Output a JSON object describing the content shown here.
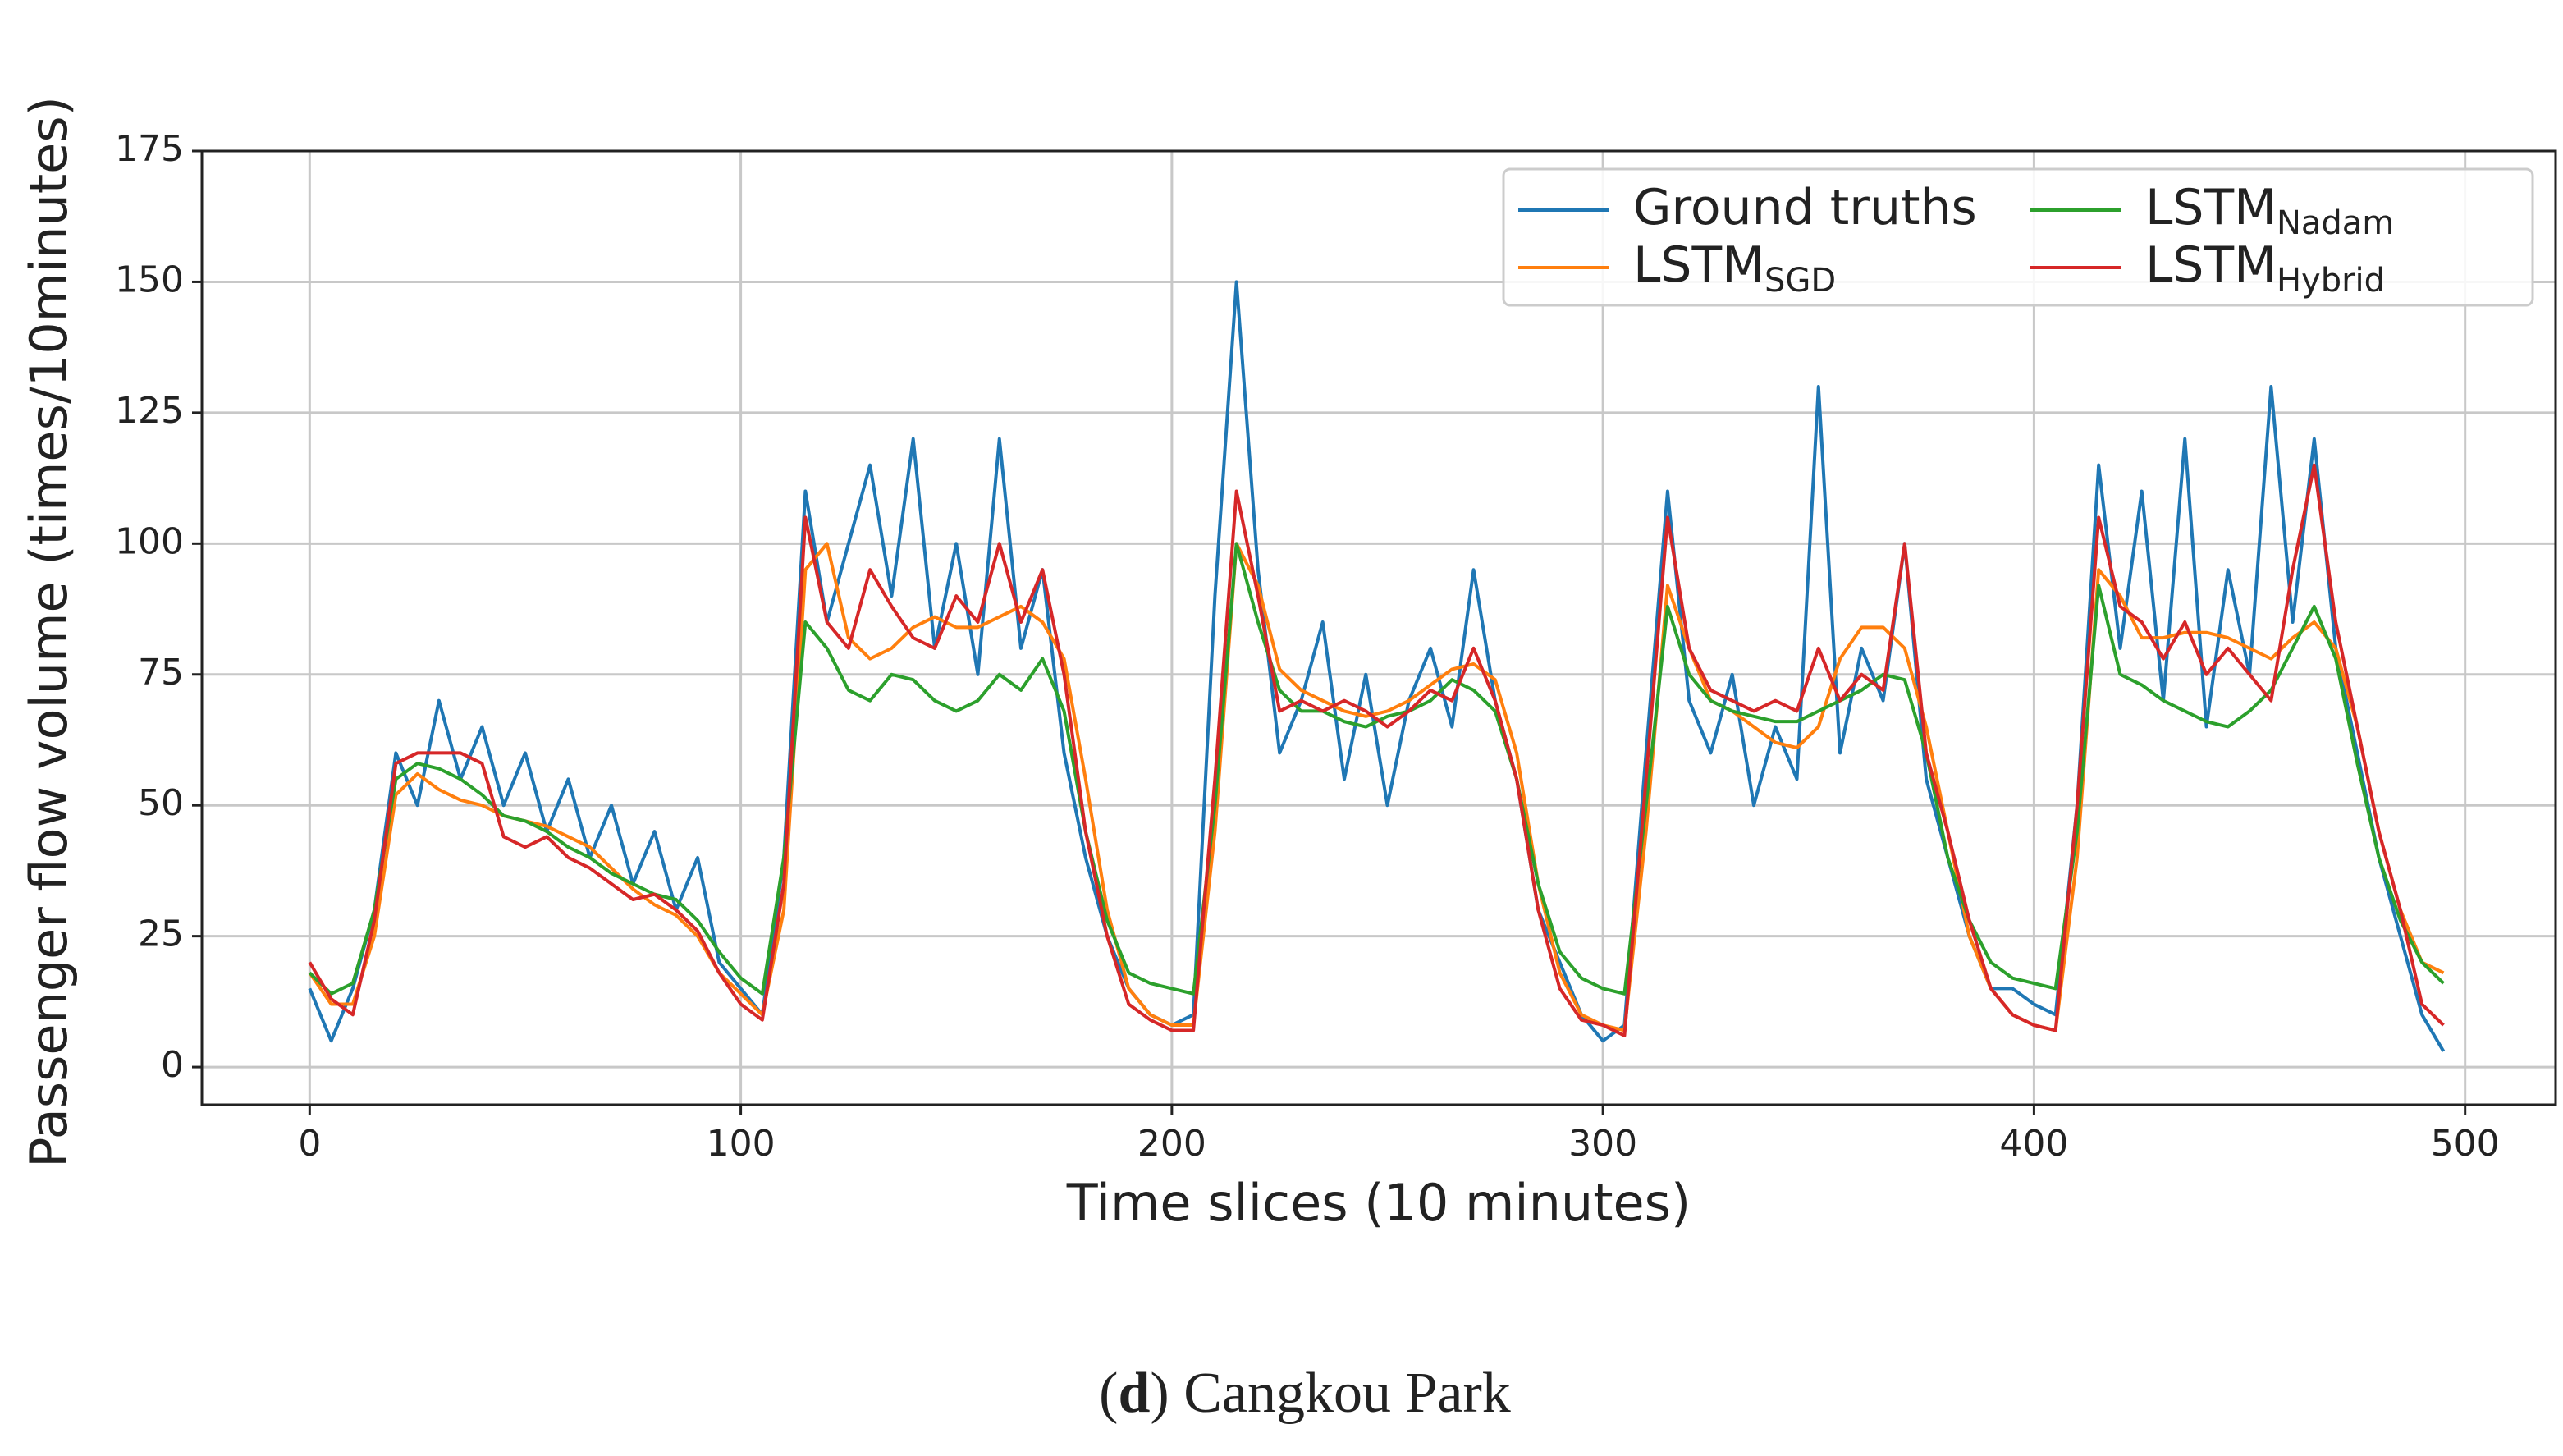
{
  "chart_data": {
    "type": "line",
    "xlabel": "Time slices (10 minutes)",
    "ylabel": "Passenger flow volume (times/10minutes)",
    "caption": [
      "(",
      "d",
      ") Cangkou Park"
    ],
    "xlim": [
      -25,
      521
    ],
    "ylim": [
      -7.2,
      175
    ],
    "xticks": [
      0,
      100,
      200,
      300,
      400,
      500
    ],
    "yticks": [
      0,
      25,
      50,
      75,
      100,
      125,
      150,
      175
    ],
    "grid": true,
    "legend": "upper right",
    "x": [
      0,
      5,
      10,
      15,
      20,
      25,
      30,
      35,
      40,
      45,
      50,
      55,
      60,
      65,
      70,
      75,
      80,
      85,
      90,
      95,
      100,
      105,
      110,
      115,
      120,
      125,
      130,
      135,
      140,
      145,
      150,
      155,
      160,
      165,
      170,
      175,
      180,
      185,
      190,
      195,
      200,
      205,
      210,
      215,
      220,
      225,
      230,
      235,
      240,
      245,
      250,
      255,
      260,
      265,
      270,
      275,
      280,
      285,
      290,
      295,
      300,
      305,
      310,
      315,
      320,
      325,
      330,
      335,
      340,
      345,
      350,
      355,
      360,
      365,
      370,
      375,
      380,
      385,
      390,
      395,
      400,
      405,
      410,
      415,
      420,
      425,
      430,
      435,
      440,
      445,
      450,
      455,
      460,
      465,
      470,
      475,
      480,
      485,
      490,
      495
    ],
    "series": [
      {
        "name": "Ground truths",
        "subscript": null,
        "color": "#1f77b4",
        "values": [
          15,
          5,
          15,
          30,
          60,
          50,
          70,
          55,
          65,
          50,
          60,
          45,
          55,
          40,
          50,
          35,
          45,
          30,
          40,
          20,
          15,
          10,
          40,
          110,
          85,
          100,
          115,
          90,
          120,
          80,
          100,
          75,
          120,
          80,
          95,
          60,
          40,
          25,
          15,
          10,
          8,
          10,
          90,
          150,
          95,
          60,
          70,
          85,
          55,
          75,
          50,
          70,
          80,
          65,
          95,
          70,
          55,
          30,
          20,
          10,
          5,
          8,
          60,
          110,
          70,
          60,
          75,
          50,
          65,
          55,
          130,
          60,
          80,
          70,
          100,
          55,
          40,
          25,
          15,
          15,
          12,
          10,
          50,
          115,
          80,
          110,
          70,
          120,
          65,
          95,
          75,
          130,
          85,
          120,
          80,
          60,
          40,
          25,
          10,
          3
        ]
      },
      {
        "name": "LSTM",
        "subscript": "SGD",
        "color": "#ff7f0e",
        "values": [
          18,
          12,
          12,
          25,
          52,
          56,
          53,
          51,
          50,
          48,
          47,
          46,
          44,
          42,
          38,
          34,
          31,
          29,
          25,
          18,
          14,
          10,
          30,
          95,
          100,
          82,
          78,
          80,
          84,
          86,
          84,
          84,
          86,
          88,
          85,
          78,
          55,
          30,
          15,
          10,
          8,
          8,
          45,
          100,
          92,
          76,
          72,
          70,
          68,
          67,
          68,
          70,
          73,
          76,
          77,
          74,
          60,
          35,
          18,
          10,
          8,
          7,
          45,
          92,
          80,
          70,
          68,
          65,
          62,
          61,
          65,
          78,
          84,
          84,
          80,
          65,
          45,
          25,
          15,
          10,
          8,
          7,
          40,
          95,
          90,
          82,
          82,
          83,
          83,
          82,
          80,
          78,
          82,
          85,
          80,
          65,
          45,
          30,
          20,
          18
        ]
      },
      {
        "name": "LSTM",
        "subscript": "Nadam",
        "color": "#2ca02c",
        "values": [
          18,
          14,
          16,
          30,
          55,
          58,
          57,
          55,
          52,
          48,
          47,
          45,
          42,
          40,
          37,
          35,
          33,
          32,
          28,
          22,
          17,
          14,
          40,
          85,
          80,
          72,
          70,
          75,
          74,
          70,
          68,
          70,
          75,
          72,
          78,
          68,
          45,
          28,
          18,
          16,
          15,
          14,
          50,
          100,
          85,
          72,
          68,
          68,
          66,
          65,
          67,
          68,
          70,
          74,
          72,
          68,
          55,
          35,
          22,
          17,
          15,
          14,
          50,
          88,
          75,
          70,
          68,
          67,
          66,
          66,
          68,
          70,
          72,
          75,
          74,
          60,
          40,
          28,
          20,
          17,
          16,
          15,
          45,
          92,
          75,
          73,
          70,
          68,
          66,
          65,
          68,
          72,
          80,
          88,
          78,
          58,
          40,
          28,
          20,
          16
        ]
      },
      {
        "name": "LSTM",
        "subscript": "Hybrid",
        "color": "#d62728",
        "values": [
          20,
          13,
          10,
          28,
          58,
          60,
          60,
          60,
          58,
          44,
          42,
          44,
          40,
          38,
          35,
          32,
          33,
          30,
          26,
          18,
          12,
          9,
          35,
          105,
          85,
          80,
          95,
          88,
          82,
          80,
          90,
          85,
          100,
          85,
          95,
          75,
          45,
          25,
          12,
          9,
          7,
          7,
          55,
          110,
          90,
          68,
          70,
          68,
          70,
          68,
          65,
          68,
          72,
          70,
          80,
          70,
          55,
          30,
          15,
          9,
          8,
          6,
          55,
          105,
          80,
          72,
          70,
          68,
          70,
          68,
          80,
          70,
          75,
          72,
          100,
          60,
          45,
          28,
          15,
          10,
          8,
          7,
          50,
          105,
          88,
          85,
          78,
          85,
          75,
          80,
          75,
          70,
          95,
          115,
          85,
          65,
          45,
          30,
          12,
          8
        ]
      }
    ]
  }
}
